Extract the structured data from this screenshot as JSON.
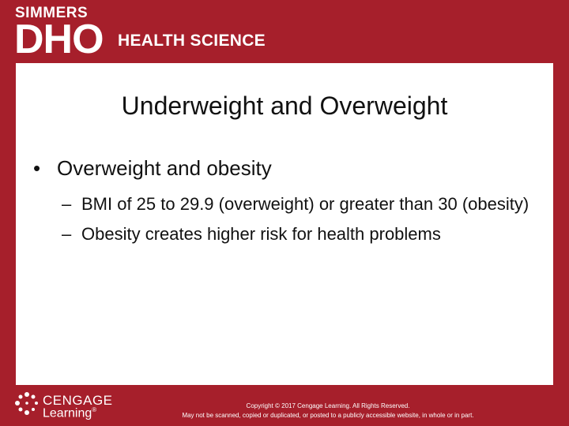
{
  "header": {
    "brand_top": "SIMMERS",
    "brand_main": "DHO",
    "brand_sub": "HEALTH SCIENCE"
  },
  "slide": {
    "title": "Underweight and Overweight",
    "bullets": [
      {
        "text": "Overweight and obesity",
        "sub": [
          "BMI of 25 to 29.9 (overweight) or greater than 30 (obesity)",
          "Obesity creates higher risk for health problems"
        ]
      }
    ]
  },
  "footer": {
    "logo_top": "CENGAGE",
    "logo_bottom": "Learning",
    "logo_mark": "®",
    "copyright": [
      "Copyright © 2017 Cengage Learning. All Rights Reserved.",
      "May not be scanned, copied or duplicated, or posted to a publicly accessible website, in whole or in part."
    ]
  }
}
